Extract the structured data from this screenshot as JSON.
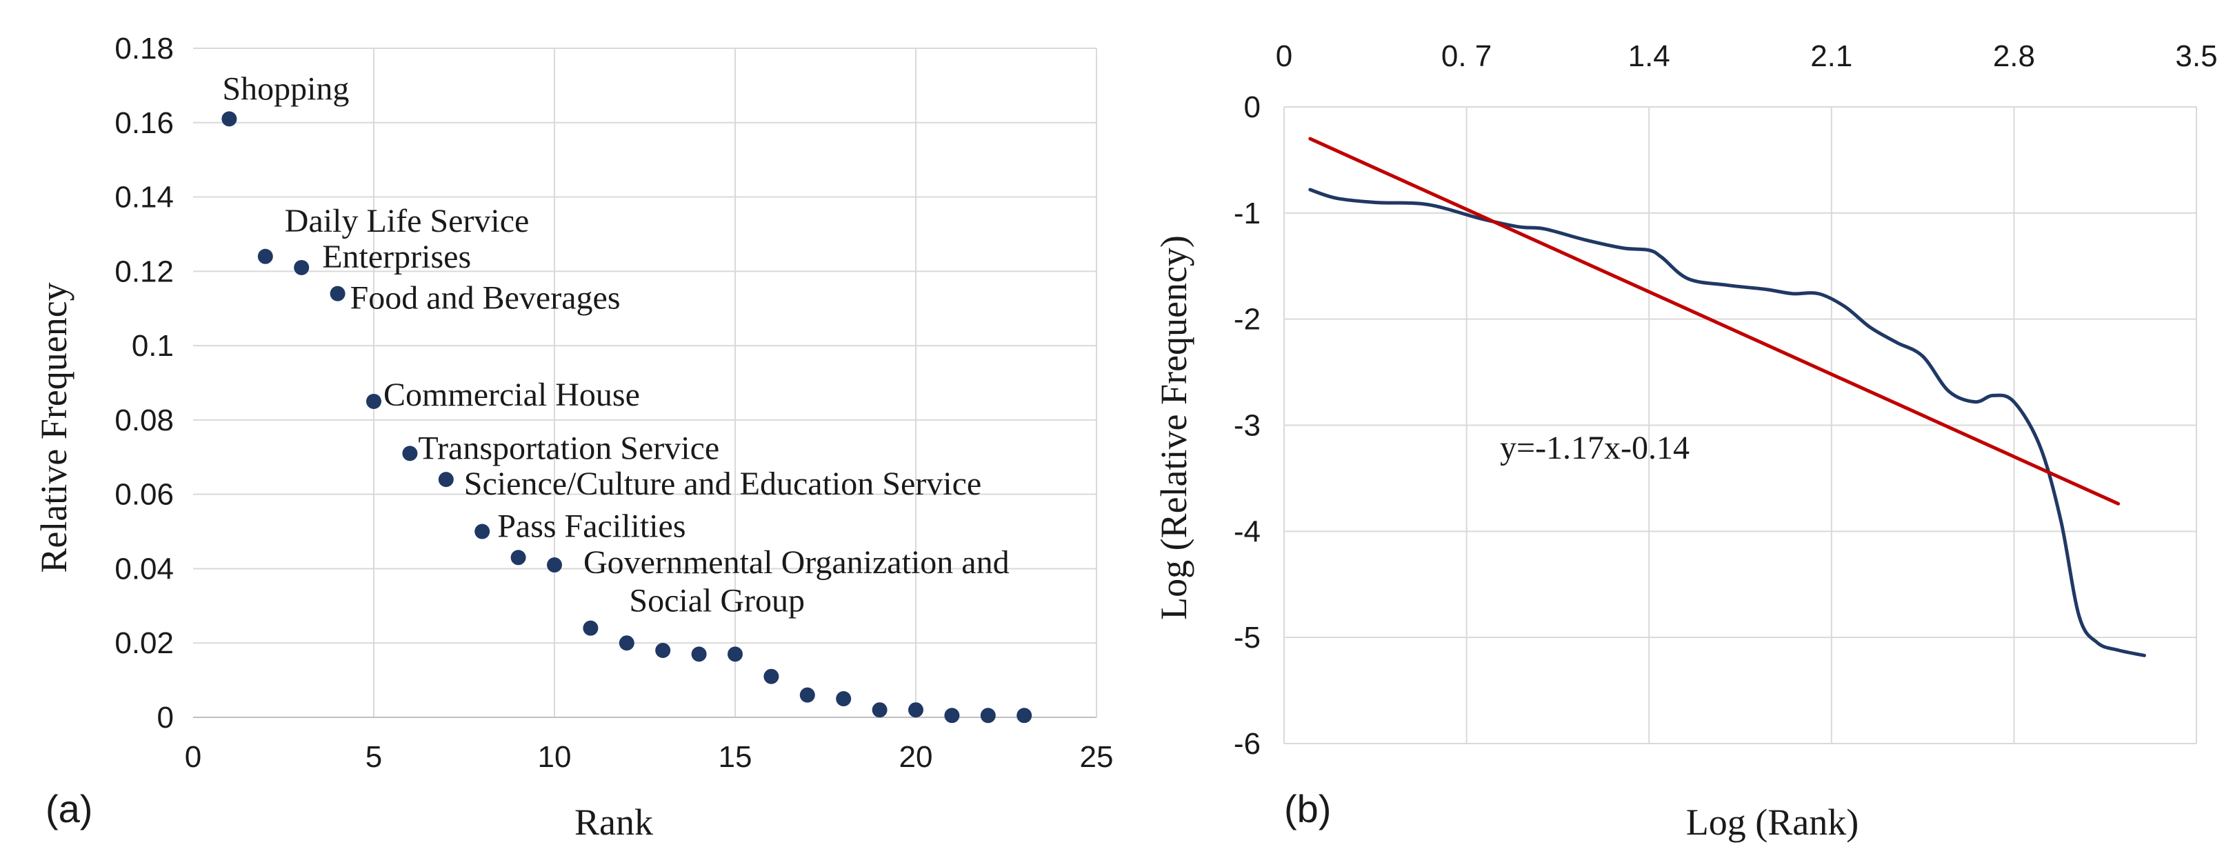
{
  "chart_data": [
    {
      "type": "scatter",
      "panel_label": "(a)",
      "xlabel": "Rank",
      "ylabel": "Relative Frequency",
      "xlim": [
        0,
        25
      ],
      "ylim": [
        0,
        0.18
      ],
      "x_ticks": [
        "0",
        "5",
        "10",
        "15",
        "20",
        "25"
      ],
      "y_ticks": [
        "0",
        "0.02",
        "0.04",
        "0.06",
        "0.08",
        "0.1",
        "0.12",
        "0.14",
        "0.16",
        "0.18"
      ],
      "color": "#1f3864",
      "x": [
        1,
        2,
        3,
        4,
        5,
        6,
        7,
        8,
        9,
        10,
        11,
        12,
        13,
        14,
        15,
        16,
        17,
        18,
        19,
        20,
        21,
        22,
        23
      ],
      "y": [
        0.161,
        0.124,
        0.121,
        0.114,
        0.085,
        0.071,
        0.064,
        0.05,
        0.043,
        0.041,
        0.024,
        0.02,
        0.018,
        0.017,
        0.017,
        0.011,
        0.006,
        0.005,
        0.002,
        0.002,
        0.0005,
        0.0005,
        0.0005
      ],
      "annotations": [
        {
          "text": "Shopping",
          "rank": 1
        },
        {
          "text": "Daily Life Service",
          "rank": 2
        },
        {
          "text": "Enterprises",
          "rank": 3
        },
        {
          "text": "Food and  Beverages",
          "rank": 4
        },
        {
          "text": "Commercial  House",
          "rank": 5
        },
        {
          "text": "Transportation  Service",
          "rank": 6
        },
        {
          "text": "Science/Culture  and Education Service",
          "rank": 7
        },
        {
          "text": "Pass Facilities",
          "rank": 8
        },
        {
          "text": "Governmental  Organization  and",
          "rank": 10
        },
        {
          "text": "Social Group",
          "rank": 11
        }
      ]
    },
    {
      "type": "line",
      "panel_label": "(b)",
      "xlabel": "Log (Rank)",
      "ylabel": "Log (Relative Frequency)",
      "xlim": [
        0,
        3.5
      ],
      "ylim": [
        -6,
        0
      ],
      "x_ticks": [
        "0",
        "0. 7",
        "1.4",
        "2.1",
        "2.8",
        "3.5"
      ],
      "y_ticks": [
        "0",
        "-1",
        "-2",
        "-3",
        "-4",
        "-5",
        "-6"
      ],
      "series": [
        {
          "name": "Log (Relative Frequency)",
          "color": "#203864",
          "x": [
            0.1,
            0.2,
            0.35,
            0.55,
            0.75,
            0.9,
            1.0,
            1.15,
            1.3,
            1.4,
            1.45,
            1.55,
            1.7,
            1.85,
            1.95,
            2.05,
            2.15,
            2.25,
            2.35,
            2.45,
            2.55,
            2.65,
            2.72,
            2.8,
            2.9,
            2.98,
            3.05,
            3.12,
            3.2,
            3.3
          ],
          "y": [
            -0.78,
            -0.86,
            -0.9,
            -0.92,
            -1.05,
            -1.13,
            -1.15,
            -1.25,
            -1.33,
            -1.35,
            -1.42,
            -1.62,
            -1.68,
            -1.72,
            -1.76,
            -1.76,
            -1.88,
            -2.08,
            -2.22,
            -2.35,
            -2.68,
            -2.78,
            -2.72,
            -2.78,
            -3.2,
            -3.9,
            -4.8,
            -5.05,
            -5.12,
            -5.17
          ]
        },
        {
          "name": "Trendline",
          "color": "#c00000",
          "x": [
            0.1,
            3.2
          ],
          "y": [
            -0.3,
            -3.74
          ]
        }
      ],
      "equation": "y=-1.17x-0.14"
    }
  ]
}
